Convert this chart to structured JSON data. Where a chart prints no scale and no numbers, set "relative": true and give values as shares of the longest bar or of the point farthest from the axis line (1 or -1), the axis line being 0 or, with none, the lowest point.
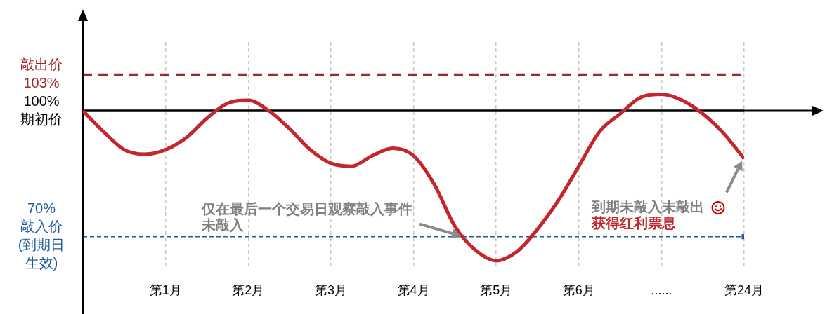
{
  "chart_data": {
    "type": "line",
    "relative": true,
    "categories": [
      null,
      null,
      null,
      null,
      "第1月",
      null,
      null,
      null,
      "第2月",
      null,
      null,
      null,
      "第3月",
      null,
      null,
      null,
      "第4月",
      null,
      null,
      null,
      "第5月",
      null,
      null,
      null,
      "第6月",
      null,
      null,
      null,
      "......",
      null,
      null,
      null,
      "第24月"
    ],
    "series": [
      {
        "color": "#c4262e",
        "values": [
          0,
          -0.14,
          -0.26,
          -0.29,
          -0.26,
          -0.18,
          -0.05,
          0.05,
          0.07,
          0,
          -0.12,
          -0.26,
          -0.35,
          -0.37,
          -0.3,
          -0.25,
          -0.3,
          -0.49,
          -0.77,
          -0.93,
          -1,
          -0.94,
          -0.79,
          -0.6,
          -0.37,
          -0.14,
          -0.02,
          0.09,
          0.11,
          0.07,
          -0.02,
          -0.15,
          -0.32
        ]
      },
      {
        "type": "scatter",
        "marker": "square",
        "color": "#1f5aa0",
        "values": [
          null,
          null,
          null,
          null,
          null,
          null,
          null,
          null,
          null,
          null,
          null,
          null,
          null,
          null,
          null,
          null,
          null,
          null,
          null,
          null,
          null,
          null,
          null,
          null,
          null,
          null,
          null,
          null,
          null,
          null,
          null,
          null,
          -0.84
        ]
      }
    ],
    "ref_lines": [
      {
        "axis": "y",
        "value": 0.24,
        "label": "敲出价\n103%",
        "color": "#9e2a2b",
        "line_style": "dashed"
      },
      {
        "axis": "y",
        "value": 0,
        "label": "100%\n期初价",
        "color": "#000000",
        "line_style": "solid"
      },
      {
        "axis": "y",
        "value": -0.84,
        "label": "70%\n敲入价\n(到期日生效)",
        "color": "#1f5c99",
        "line_style": "dashed"
      }
    ],
    "annotations": [
      {
        "text": "仅在最后一个交易日观察敲入事件未敲入",
        "y": -0.84
      },
      "到期未敲入未敲出",
      "获得红利票息"
    ],
    "grid": "x"
  }
}
